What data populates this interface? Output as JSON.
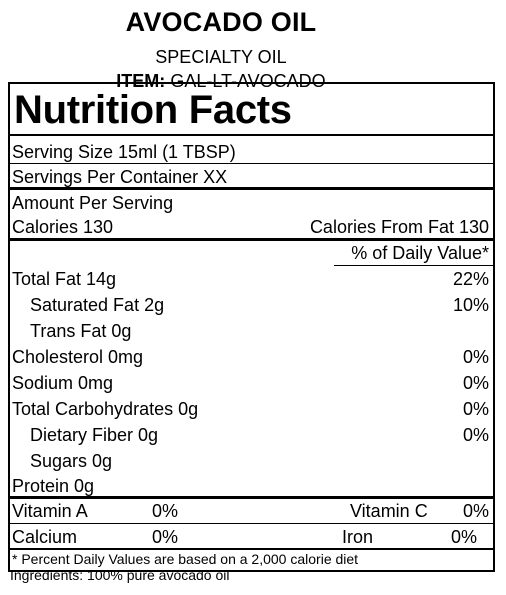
{
  "header": {
    "product_name": "AVOCADO OIL",
    "subtitle": "SPECIALTY OIL",
    "item_label": "ITEM:",
    "item_code": "GAL-LT-AVOCADO"
  },
  "panel": {
    "title": "Nutrition Facts",
    "serving_size": "Serving Size  15ml (1 TBSP)",
    "servings_per_container": "Servings Per Container  XX",
    "amount_per_serving": "Amount Per Serving",
    "calories": "Calories 130",
    "calories_from_fat": "Calories From Fat 130",
    "dv_header": "% of Daily Value*",
    "nutrients": [
      {
        "name": "Total Fat  14g",
        "dv": "22%"
      },
      {
        "name": "Saturated Fat  2g",
        "dv": "10%"
      },
      {
        "name": "Trans Fat  0g",
        "dv": ""
      },
      {
        "name": "Cholesterol   0mg",
        "dv": "0%"
      },
      {
        "name": "Sodium  0mg",
        "dv": "0%"
      },
      {
        "name": "Total Carbohydrates  0g",
        "dv": "0%"
      },
      {
        "name": "Dietary Fiber  0g",
        "dv": "0%"
      },
      {
        "name": "Sugars  0g",
        "dv": ""
      },
      {
        "name": "Protein  0g",
        "dv": ""
      }
    ],
    "vitamins": [
      {
        "name": "Vitamin A",
        "dv": "0%"
      },
      {
        "name": "Vitamin C",
        "dv": "0%"
      },
      {
        "name": "Calcium",
        "dv": "0%"
      },
      {
        "name": "Iron",
        "dv": "0%"
      }
    ],
    "footnote": "* Percent Daily Values are based on a 2,000 calorie diet"
  },
  "ingredients": "Ingredients: 100% pure avocado oil"
}
